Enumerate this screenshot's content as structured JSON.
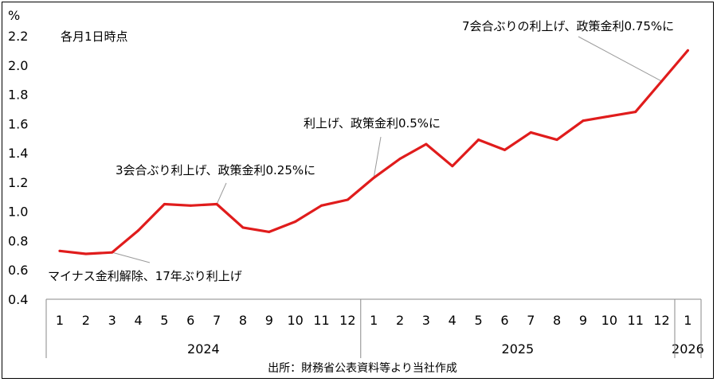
{
  "chart_data": {
    "type": "line",
    "y_unit_label": "%",
    "subtitle": "各月1日時点",
    "source": "出所：財務省公表資料等より当社作成",
    "ylim": [
      0.4,
      2.2
    ],
    "yticks": [
      "0.4",
      "0.6",
      "0.8",
      "1.0",
      "1.2",
      "1.4",
      "1.6",
      "1.8",
      "2.0",
      "2.2"
    ],
    "legend": "none",
    "grid": false,
    "line_color": "#e01c1c",
    "years": [
      {
        "label": "2024",
        "months": [
          "1",
          "2",
          "3",
          "4",
          "5",
          "6",
          "7",
          "8",
          "9",
          "10",
          "11",
          "12"
        ]
      },
      {
        "label": "2025",
        "months": [
          "1",
          "2",
          "3",
          "4",
          "5",
          "6",
          "7",
          "8",
          "9",
          "10",
          "11",
          "12"
        ]
      },
      {
        "label": "2026",
        "months": [
          "1"
        ]
      }
    ],
    "x": [
      "2024-01",
      "2024-02",
      "2024-03",
      "2024-04",
      "2024-05",
      "2024-06",
      "2024-07",
      "2024-08",
      "2024-09",
      "2024-10",
      "2024-11",
      "2024-12",
      "2025-01",
      "2025-02",
      "2025-03",
      "2025-04",
      "2025-05",
      "2025-06",
      "2025-07",
      "2025-08",
      "2025-09",
      "2025-10",
      "2025-11",
      "2025-12",
      "2026-01"
    ],
    "values": [
      0.73,
      0.71,
      0.72,
      0.87,
      1.05,
      1.04,
      1.05,
      0.89,
      0.86,
      0.93,
      1.04,
      1.08,
      1.23,
      1.36,
      1.46,
      1.31,
      1.49,
      1.42,
      1.54,
      1.49,
      1.62,
      1.65,
      1.68,
      1.89,
      2.1
    ],
    "annotations": [
      {
        "text": "マイナス金利解除、17年ぶり利上げ",
        "x": "2024-03"
      },
      {
        "text": "3会合ぶり利上げ、政策金利0.25%に",
        "x": "2024-07"
      },
      {
        "text": "利上げ、政策金利0.5%に",
        "x": "2025-01"
      },
      {
        "text": "7会合ぶりの利上げ、政策金利0.75%に",
        "x": "2025-12"
      }
    ]
  }
}
